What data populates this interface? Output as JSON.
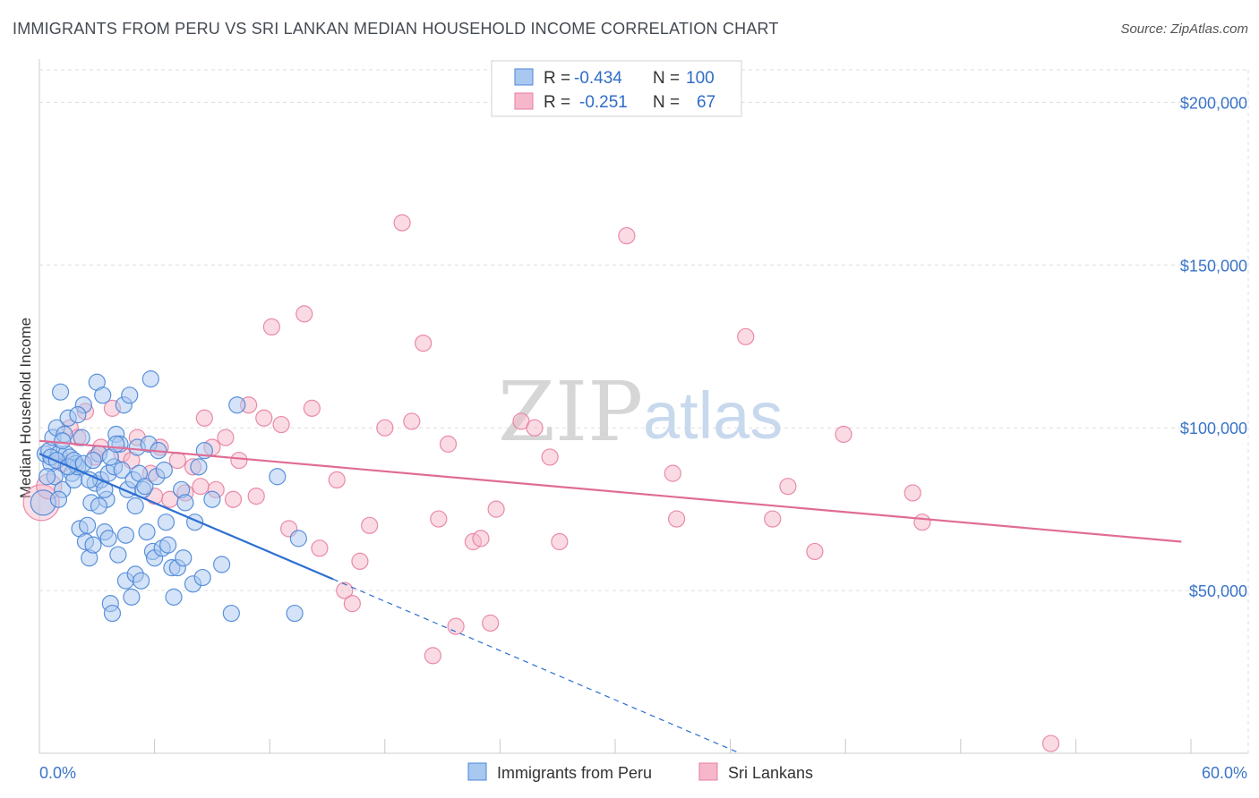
{
  "header": {
    "title": "IMMIGRANTS FROM PERU VS SRI LANKAN MEDIAN HOUSEHOLD INCOME CORRELATION CHART",
    "source": "Source: ZipAtlas.com"
  },
  "watermark": {
    "part1": "ZIP",
    "part2": "atlas"
  },
  "legend": {
    "rows": [
      {
        "r_label": "R =",
        "r_value": "-0.434",
        "n_label": "N =",
        "n_value": "100",
        "color": "#a9c8f0"
      },
      {
        "r_label": "R =",
        "r_value": "-0.251",
        "n_label": "N =",
        "n_value": "67",
        "color": "#f6b7ca"
      }
    ]
  },
  "chart_data": {
    "type": "scatter",
    "title": "IMMIGRANTS FROM PERU VS SRI LANKAN MEDIAN HOUSEHOLD INCOME CORRELATION CHART",
    "xlabel": "",
    "ylabel": "Median Household Income",
    "xlim": [
      0,
      60
    ],
    "ylim": [
      0,
      210000
    ],
    "x_tick_labels": [
      "0.0%",
      "60.0%"
    ],
    "y_tick_values": [
      50000,
      100000,
      150000,
      200000
    ],
    "y_tick_labels": [
      "$50,000",
      "$100,000",
      "$150,000",
      "$200,000"
    ],
    "grid": true,
    "legend_placement": "top-center",
    "colors": {
      "peru_fill": "#a9c8f0",
      "peru_stroke": "#4a86d8",
      "peru_line": "#2d6fd1",
      "sri_fill": "#f6b7ca",
      "sri_stroke": "#e87ea0",
      "sri_line": "#e06c95",
      "axis_text": "#3a74c9",
      "grid": "#dddddd"
    },
    "series": [
      {
        "name": "Immigrants from Peru",
        "trend": {
          "x": [
            0,
            15.3
          ],
          "y": [
            92000,
            53500
          ],
          "dashed_x": [
            15.3,
            36.5
          ],
          "dashed_y": [
            53500,
            0
          ]
        },
        "points": [
          [
            0.2,
            77000,
            14
          ],
          [
            0.3,
            92000,
            9
          ],
          [
            0.5,
            93000,
            9
          ],
          [
            0.6,
            89000,
            9
          ],
          [
            0.7,
            97000,
            9
          ],
          [
            0.8,
            85000,
            9
          ],
          [
            0.9,
            100000,
            9
          ],
          [
            1.0,
            92000,
            9
          ],
          [
            1.1,
            111000,
            9
          ],
          [
            1.2,
            81000,
            9
          ],
          [
            1.3,
            98000,
            9
          ],
          [
            1.4,
            92000,
            9
          ],
          [
            1.5,
            103000,
            9
          ],
          [
            1.6,
            91000,
            9
          ],
          [
            1.7,
            86000,
            9
          ],
          [
            1.8,
            84000,
            9
          ],
          [
            1.9,
            89000,
            9
          ],
          [
            2.0,
            88000,
            9
          ],
          [
            2.1,
            69000,
            9
          ],
          [
            2.2,
            97000,
            9
          ],
          [
            2.3,
            107000,
            9
          ],
          [
            2.4,
            65000,
            9
          ],
          [
            2.5,
            70000,
            9
          ],
          [
            2.6,
            60000,
            9
          ],
          [
            2.7,
            77000,
            9
          ],
          [
            2.8,
            64000,
            9
          ],
          [
            2.9,
            83000,
            9
          ],
          [
            3.0,
            114000,
            9
          ],
          [
            3.1,
            92000,
            9
          ],
          [
            3.2,
            84000,
            9
          ],
          [
            3.3,
            110000,
            9
          ],
          [
            3.4,
            68000,
            9
          ],
          [
            3.5,
            78000,
            9
          ],
          [
            3.6,
            86000,
            9
          ],
          [
            3.7,
            46000,
            9
          ],
          [
            3.8,
            43000,
            9
          ],
          [
            3.9,
            88000,
            9
          ],
          [
            4.0,
            98000,
            9
          ],
          [
            4.1,
            61000,
            9
          ],
          [
            4.2,
            95000,
            9
          ],
          [
            4.3,
            87000,
            9
          ],
          [
            4.4,
            107000,
            9
          ],
          [
            4.5,
            53000,
            9
          ],
          [
            4.6,
            81000,
            9
          ],
          [
            4.7,
            110000,
            9
          ],
          [
            4.8,
            48000,
            9
          ],
          [
            4.9,
            84000,
            9
          ],
          [
            5.0,
            55000,
            9
          ],
          [
            5.1,
            94000,
            9
          ],
          [
            5.2,
            86000,
            9
          ],
          [
            5.3,
            53000,
            9
          ],
          [
            5.4,
            81000,
            9
          ],
          [
            5.5,
            82000,
            9
          ],
          [
            5.6,
            68000,
            9
          ],
          [
            5.7,
            95000,
            9
          ],
          [
            5.8,
            115000,
            9
          ],
          [
            5.9,
            62000,
            9
          ],
          [
            6.0,
            60000,
            9
          ],
          [
            6.1,
            85000,
            9
          ],
          [
            6.2,
            93000,
            9
          ],
          [
            6.4,
            63000,
            9
          ],
          [
            6.6,
            71000,
            9
          ],
          [
            6.7,
            64000,
            9
          ],
          [
            6.9,
            57000,
            9
          ],
          [
            7.0,
            48000,
            9
          ],
          [
            7.2,
            57000,
            9
          ],
          [
            7.4,
            81000,
            9
          ],
          [
            7.6,
            77000,
            9
          ],
          [
            8.0,
            52000,
            9
          ],
          [
            8.1,
            71000,
            9
          ],
          [
            8.5,
            54000,
            9
          ],
          [
            8.6,
            93000,
            9
          ],
          [
            9.5,
            58000,
            9
          ],
          [
            10.0,
            43000,
            9
          ],
          [
            10.3,
            107000,
            9
          ],
          [
            12.4,
            85000,
            9
          ],
          [
            13.3,
            43000,
            9
          ],
          [
            13.5,
            66000,
            9
          ],
          [
            0.4,
            85000,
            9
          ],
          [
            0.6,
            91000,
            9
          ],
          [
            0.9,
            90000,
            9
          ],
          [
            1.2,
            96000,
            9
          ],
          [
            1.5,
            88000,
            9
          ],
          [
            1.8,
            90000,
            9
          ],
          [
            2.0,
            104000,
            9
          ],
          [
            2.3,
            89000,
            9
          ],
          [
            2.6,
            84000,
            9
          ],
          [
            3.1,
            76000,
            9
          ],
          [
            3.4,
            81000,
            9
          ],
          [
            3.7,
            91000,
            9
          ],
          [
            4.0,
            95000,
            9
          ],
          [
            4.5,
            67000,
            9
          ],
          [
            5.0,
            76000,
            9
          ],
          [
            6.5,
            87000,
            9
          ],
          [
            7.5,
            60000,
            9
          ],
          [
            8.3,
            88000,
            9
          ],
          [
            9.0,
            78000,
            9
          ],
          [
            3.6,
            66000,
            9
          ],
          [
            2.8,
            90000,
            9
          ],
          [
            1.0,
            78000,
            9
          ]
        ]
      },
      {
        "name": "Sri Lankans",
        "trend": {
          "x": [
            0,
            59.5
          ],
          "y": [
            96000,
            65000
          ]
        },
        "points": [
          [
            0.1,
            77000,
            20
          ],
          [
            0.5,
            82000,
            14
          ],
          [
            1.6,
            100000,
            9
          ],
          [
            2.4,
            105000,
            9
          ],
          [
            2.9,
            91000,
            9
          ],
          [
            3.8,
            106000,
            9
          ],
          [
            4.3,
            92000,
            9
          ],
          [
            5.1,
            97000,
            9
          ],
          [
            5.8,
            86000,
            9
          ],
          [
            6.3,
            94000,
            9
          ],
          [
            6.8,
            78000,
            9
          ],
          [
            7.2,
            90000,
            9
          ],
          [
            7.6,
            80000,
            9
          ],
          [
            8.0,
            88000,
            9
          ],
          [
            8.6,
            103000,
            9
          ],
          [
            9.0,
            94000,
            9
          ],
          [
            9.2,
            81000,
            9
          ],
          [
            9.7,
            97000,
            9
          ],
          [
            10.1,
            78000,
            9
          ],
          [
            10.4,
            90000,
            9
          ],
          [
            10.9,
            107000,
            9
          ],
          [
            11.3,
            79000,
            9
          ],
          [
            11.7,
            103000,
            9
          ],
          [
            12.1,
            131000,
            9
          ],
          [
            12.6,
            101000,
            9
          ],
          [
            13.0,
            69000,
            9
          ],
          [
            13.8,
            135000,
            9
          ],
          [
            14.2,
            106000,
            9
          ],
          [
            14.6,
            63000,
            9
          ],
          [
            15.5,
            84000,
            9
          ],
          [
            15.9,
            50000,
            9
          ],
          [
            16.3,
            46000,
            9
          ],
          [
            16.7,
            59000,
            9
          ],
          [
            17.2,
            70000,
            9
          ],
          [
            18.0,
            100000,
            9
          ],
          [
            18.9,
            163000,
            9
          ],
          [
            19.4,
            102000,
            9
          ],
          [
            20.0,
            126000,
            9
          ],
          [
            20.5,
            30000,
            9
          ],
          [
            20.8,
            72000,
            9
          ],
          [
            21.3,
            95000,
            9
          ],
          [
            21.7,
            39000,
            9
          ],
          [
            22.6,
            65000,
            9
          ],
          [
            23.0,
            66000,
            9
          ],
          [
            23.5,
            40000,
            9
          ],
          [
            23.8,
            75000,
            9
          ],
          [
            25.1,
            102000,
            9
          ],
          [
            25.8,
            100000,
            9
          ],
          [
            26.6,
            91000,
            9
          ],
          [
            27.1,
            65000,
            9
          ],
          [
            30.6,
            159000,
            9
          ],
          [
            33.0,
            86000,
            9
          ],
          [
            33.2,
            72000,
            9
          ],
          [
            36.8,
            128000,
            9
          ],
          [
            38.2,
            72000,
            9
          ],
          [
            39.0,
            82000,
            9
          ],
          [
            40.4,
            62000,
            9
          ],
          [
            41.9,
            98000,
            9
          ],
          [
            45.5,
            80000,
            9
          ],
          [
            46.0,
            71000,
            9
          ],
          [
            52.7,
            3000,
            9
          ],
          [
            3.2,
            94000,
            9
          ],
          [
            4.8,
            90000,
            9
          ],
          [
            6.0,
            79000,
            9
          ],
          [
            8.4,
            82000,
            9
          ],
          [
            1.2,
            89000,
            9
          ],
          [
            2.0,
            97000,
            9
          ]
        ]
      }
    ]
  },
  "bottom_legend": {
    "items": [
      {
        "label": "Immigrants from Peru"
      },
      {
        "label": "Sri Lankans"
      }
    ]
  }
}
